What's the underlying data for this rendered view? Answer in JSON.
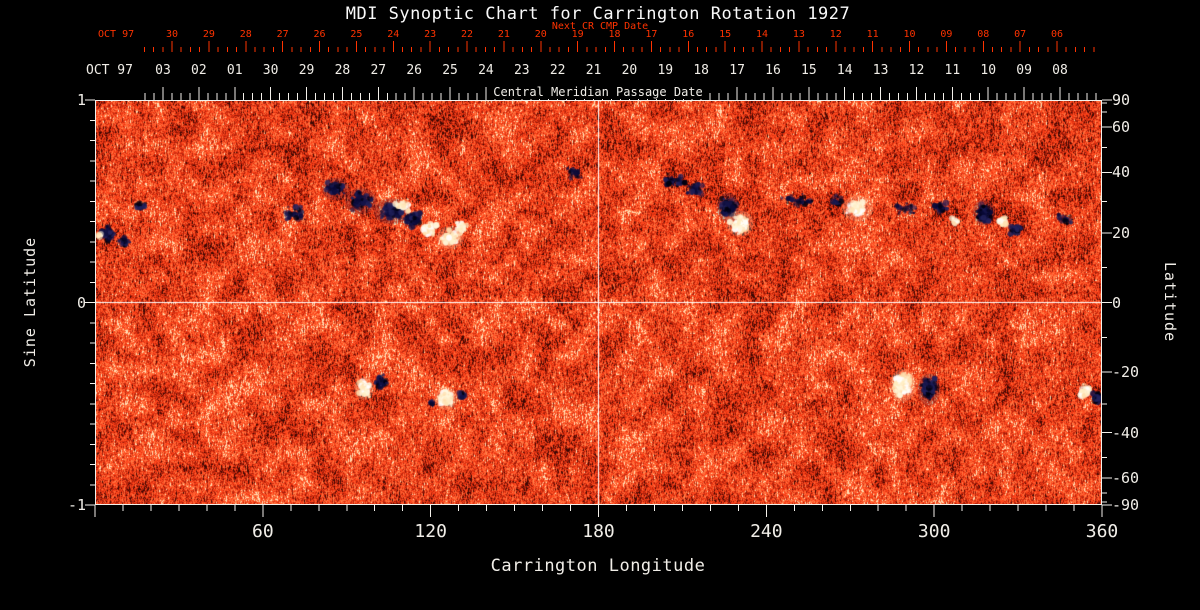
{
  "title": "MDI Synoptic Chart for Carrington Rotation 1927",
  "colors": {
    "background": "#000000",
    "text": "#f1eee8",
    "axis_red": "#ff3300",
    "axis_white": "#f4f1eb",
    "grid_line": "#ffffff"
  },
  "axes": {
    "top_red": {
      "label": "Next CR CMP Date",
      "prefix": "OCT 97",
      "ticks": [
        "30",
        "29",
        "28",
        "27",
        "26",
        "25",
        "24",
        "23",
        "22",
        "21",
        "20",
        "19",
        "18",
        "17",
        "16",
        "15",
        "14",
        "13",
        "12",
        "11",
        "10",
        "09",
        "08",
        "07",
        "06"
      ]
    },
    "top_white": {
      "label": "Central Meridian Passage Date",
      "prefix": "OCT 97",
      "ticks": [
        "03",
        "02",
        "01",
        "30",
        "29",
        "28",
        "27",
        "26",
        "25",
        "24",
        "23",
        "22",
        "21",
        "20",
        "19",
        "18",
        "17",
        "16",
        "15",
        "14",
        "13",
        "12",
        "11",
        "10",
        "09",
        "08"
      ]
    },
    "left": {
      "label": "Sine Latitude",
      "ticks": [
        "1",
        "0",
        "-1"
      ]
    },
    "right": {
      "label": "Latitude",
      "ticks": [
        "90",
        "60",
        "40",
        "20",
        "0",
        "-20",
        "-40",
        "-60",
        "-90"
      ]
    },
    "bottom": {
      "label": "Carrington Longitude",
      "ticks": [
        "60",
        "120",
        "180",
        "240",
        "300",
        "360"
      ]
    }
  },
  "chart_data": {
    "type": "heatmap",
    "title": "MDI Synoptic Chart for Carrington Rotation 1927",
    "carrington_rotation": 1927,
    "xlabel": "Carrington Longitude",
    "ylabel_left": "Sine Latitude",
    "ylabel_right": "Latitude",
    "x_range": [
      0,
      360
    ],
    "y_range_sine_latitude": [
      -1,
      1
    ],
    "x_ticks": [
      60,
      120,
      180,
      240,
      300,
      360
    ],
    "left_ticks_sine_latitude": [
      1,
      0,
      -1
    ],
    "right_ticks_latitude": [
      90,
      60,
      40,
      20,
      0,
      -20,
      -40,
      -60,
      -90
    ],
    "grid_lines": {
      "vertical_at_longitude": 180,
      "horizontal_at_sine_latitude": 0
    },
    "colormap": {
      "quiet_sun": [
        "#7d1004",
        "#ff3e16",
        "#ff9456"
      ],
      "negative_polarity": "#0a0a38",
      "positive_polarity": "#fff6da"
    },
    "noise_seed": 19270,
    "active_regions": [
      {
        "lon": 4.6,
        "sine_lat": 0.34,
        "spread_lon": 2.5,
        "spread_lat": 0.03,
        "dots": 55,
        "polarity": "negative"
      },
      {
        "lon": 10.5,
        "sine_lat": 0.3,
        "spread_lon": 2.0,
        "spread_lat": 0.025,
        "dots": 30,
        "polarity": "negative"
      },
      {
        "lon": 1.8,
        "sine_lat": 0.33,
        "spread_lon": 1.0,
        "spread_lat": 0.02,
        "dots": 12,
        "polarity": "positive"
      },
      {
        "lon": 16,
        "sine_lat": 0.48,
        "spread_lon": 3.0,
        "spread_lat": 0.025,
        "dots": 18,
        "polarity": "negative"
      },
      {
        "lon": 72,
        "sine_lat": 0.44,
        "spread_lon": 5.0,
        "spread_lat": 0.04,
        "dots": 35,
        "polarity": "negative"
      },
      {
        "lon": 86,
        "sine_lat": 0.56,
        "spread_lon": 3.0,
        "spread_lat": 0.035,
        "dots": 70,
        "polarity": "negative"
      },
      {
        "lon": 95,
        "sine_lat": 0.5,
        "spread_lon": 3.5,
        "spread_lat": 0.04,
        "dots": 85,
        "polarity": "negative"
      },
      {
        "lon": 106,
        "sine_lat": 0.45,
        "spread_lon": 4.0,
        "spread_lat": 0.04,
        "dots": 90,
        "polarity": "negative"
      },
      {
        "lon": 113.5,
        "sine_lat": 0.41,
        "spread_lon": 3.0,
        "spread_lat": 0.035,
        "dots": 65,
        "polarity": "negative"
      },
      {
        "lon": 110,
        "sine_lat": 0.48,
        "spread_lon": 3.0,
        "spread_lat": 0.03,
        "dots": 35,
        "polarity": "positive"
      },
      {
        "lon": 119.5,
        "sine_lat": 0.36,
        "spread_lon": 2.5,
        "spread_lat": 0.03,
        "dots": 60,
        "polarity": "positive"
      },
      {
        "lon": 127,
        "sine_lat": 0.32,
        "spread_lon": 3.0,
        "spread_lat": 0.035,
        "dots": 70,
        "polarity": "positive"
      },
      {
        "lon": 131,
        "sine_lat": 0.37,
        "spread_lon": 2.0,
        "spread_lat": 0.03,
        "dots": 40,
        "polarity": "positive"
      },
      {
        "lon": 171.5,
        "sine_lat": 0.64,
        "spread_lon": 3.0,
        "spread_lat": 0.03,
        "dots": 22,
        "polarity": "negative"
      },
      {
        "lon": 207,
        "sine_lat": 0.6,
        "spread_lon": 4.0,
        "spread_lat": 0.03,
        "dots": 45,
        "polarity": "negative"
      },
      {
        "lon": 214.5,
        "sine_lat": 0.56,
        "spread_lon": 3.0,
        "spread_lat": 0.03,
        "dots": 45,
        "polarity": "negative"
      },
      {
        "lon": 226.3,
        "sine_lat": 0.47,
        "spread_lon": 2.5,
        "spread_lat": 0.045,
        "dots": 110,
        "polarity": "negative"
      },
      {
        "lon": 230.6,
        "sine_lat": 0.39,
        "spread_lon": 3.0,
        "spread_lat": 0.04,
        "dots": 110,
        "polarity": "positive"
      },
      {
        "lon": 252,
        "sine_lat": 0.5,
        "spread_lon": 6.0,
        "spread_lat": 0.03,
        "dots": 28,
        "polarity": "negative"
      },
      {
        "lon": 265.6,
        "sine_lat": 0.5,
        "spread_lon": 2.0,
        "spread_lat": 0.03,
        "dots": 22,
        "polarity": "negative"
      },
      {
        "lon": 272.7,
        "sine_lat": 0.465,
        "spread_lon": 3.5,
        "spread_lat": 0.04,
        "dots": 80,
        "polarity": "positive"
      },
      {
        "lon": 290,
        "sine_lat": 0.46,
        "spread_lon": 5.0,
        "spread_lat": 0.03,
        "dots": 22,
        "polarity": "negative"
      },
      {
        "lon": 302,
        "sine_lat": 0.47,
        "spread_lon": 3.0,
        "spread_lat": 0.03,
        "dots": 30,
        "polarity": "negative"
      },
      {
        "lon": 307.5,
        "sine_lat": 0.4,
        "spread_lon": 1.5,
        "spread_lat": 0.025,
        "dots": 15,
        "polarity": "positive"
      },
      {
        "lon": 317.8,
        "sine_lat": 0.445,
        "spread_lon": 2.5,
        "spread_lat": 0.04,
        "dots": 100,
        "polarity": "negative"
      },
      {
        "lon": 324.5,
        "sine_lat": 0.4,
        "spread_lon": 2.0,
        "spread_lat": 0.03,
        "dots": 30,
        "polarity": "positive"
      },
      {
        "lon": 329,
        "sine_lat": 0.36,
        "spread_lon": 2.0,
        "spread_lat": 0.025,
        "dots": 38,
        "polarity": "negative"
      },
      {
        "lon": 347,
        "sine_lat": 0.41,
        "spread_lon": 3.0,
        "spread_lat": 0.03,
        "dots": 20,
        "polarity": "negative"
      },
      {
        "lon": 96.2,
        "sine_lat": -0.425,
        "spread_lon": 2.2,
        "spread_lat": 0.035,
        "dots": 90,
        "polarity": "positive"
      },
      {
        "lon": 102.5,
        "sine_lat": -0.39,
        "spread_lon": 1.8,
        "spread_lat": 0.03,
        "dots": 55,
        "polarity": "negative"
      },
      {
        "lon": 125.5,
        "sine_lat": -0.475,
        "spread_lon": 2.5,
        "spread_lat": 0.035,
        "dots": 90,
        "polarity": "positive"
      },
      {
        "lon": 131.2,
        "sine_lat": -0.455,
        "spread_lon": 1.2,
        "spread_lat": 0.02,
        "dots": 20,
        "polarity": "negative"
      },
      {
        "lon": 120.5,
        "sine_lat": -0.5,
        "spread_lon": 1.0,
        "spread_lat": 0.02,
        "dots": 12,
        "polarity": "negative"
      },
      {
        "lon": 288.8,
        "sine_lat": -0.41,
        "spread_lon": 3.0,
        "spread_lat": 0.05,
        "dots": 140,
        "polarity": "positive"
      },
      {
        "lon": 298.1,
        "sine_lat": -0.43,
        "spread_lon": 2.5,
        "spread_lat": 0.05,
        "dots": 130,
        "polarity": "negative"
      },
      {
        "lon": 353.9,
        "sine_lat": -0.44,
        "spread_lon": 2.0,
        "spread_lat": 0.03,
        "dots": 45,
        "polarity": "positive"
      },
      {
        "lon": 358.3,
        "sine_lat": -0.47,
        "spread_lon": 1.5,
        "spread_lat": 0.03,
        "dots": 45,
        "polarity": "negative"
      }
    ]
  }
}
